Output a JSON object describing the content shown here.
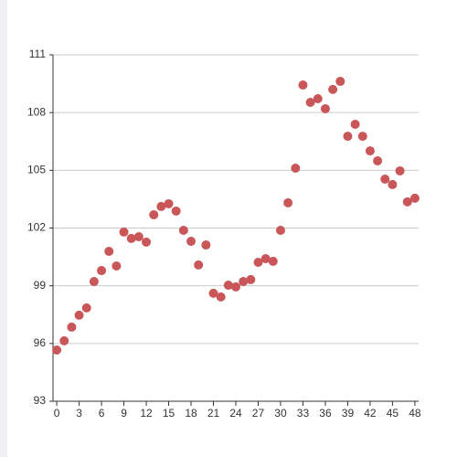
{
  "chart_data": {
    "type": "scatter",
    "x": [
      0,
      1,
      2,
      3,
      4,
      5,
      6,
      7,
      8,
      9,
      10,
      11,
      12,
      13,
      14,
      15,
      16,
      17,
      18,
      19,
      20,
      21,
      22,
      23,
      24,
      25,
      26,
      27,
      28,
      29,
      30,
      31,
      32,
      33,
      34,
      35,
      36,
      37,
      38,
      39,
      40,
      41,
      42,
      43,
      44,
      45,
      46,
      47,
      48
    ],
    "values": [
      95.66,
      96.14,
      96.85,
      97.47,
      97.85,
      99.22,
      99.79,
      100.79,
      100.03,
      101.79,
      101.46,
      101.55,
      101.27,
      102.69,
      103.12,
      103.26,
      102.88,
      101.88,
      101.31,
      100.08,
      101.12,
      98.61,
      98.42,
      99.03,
      98.94,
      99.22,
      99.32,
      100.22,
      100.41,
      100.27,
      101.88,
      103.31,
      105.11,
      109.43,
      108.53,
      108.72,
      108.2,
      109.2,
      109.62,
      106.77,
      107.39,
      106.77,
      106.01,
      105.49,
      104.54,
      104.26,
      104.97,
      103.36,
      103.55
    ],
    "color": "#c9575a",
    "xlim": [
      -0.5,
      48.5
    ],
    "xticks": [
      0,
      3,
      6,
      9,
      12,
      15,
      18,
      21,
      24,
      27,
      30,
      33,
      36,
      39,
      42,
      45,
      48
    ],
    "ylim": [
      93,
      111
    ],
    "yticks": [
      93,
      96,
      99,
      102,
      105,
      108,
      111
    ],
    "grid": true
  }
}
